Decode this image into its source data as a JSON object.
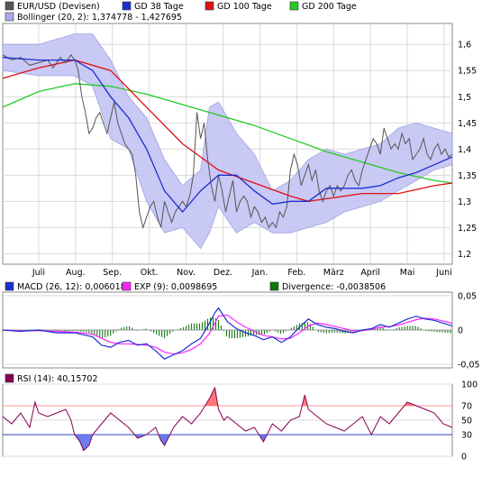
{
  "chart_data": [
    {
      "type": "line",
      "panel": "price",
      "legend": [
        {
          "name": "EUR/USD (Devisen)",
          "color": "#555555"
        },
        {
          "name": "GD 38 Tage",
          "color": "#1a2fd0"
        },
        {
          "name": "GD 100 Tage",
          "color": "#e01010"
        },
        {
          "name": "GD 200 Tage",
          "color": "#22cc22"
        },
        {
          "name": "Bollinger (20, 2): 1,374778 - 1,427695",
          "color": "#aaaaee"
        }
      ],
      "x_labels": [
        "Juli",
        "Aug.",
        "Sep.",
        "Okt.",
        "Nov.",
        "Dez.",
        "Jan.",
        "Feb.",
        "März",
        "April",
        "Mai",
        "Juni"
      ],
      "y_ticks": [
        "1,2",
        "1,25",
        "1,3",
        "1,35",
        "1,4",
        "1,45",
        "1,5",
        "1,55",
        "1,6"
      ],
      "ylim": [
        1.18,
        1.64
      ],
      "series": [
        {
          "name": "EUR/USD (Devisen)",
          "x": [
            0,
            5,
            10,
            15,
            20,
            25,
            28,
            32,
            35,
            38,
            40,
            42,
            44,
            46,
            48,
            50,
            52,
            54,
            56,
            58,
            60,
            62,
            64,
            66,
            68,
            70,
            72,
            74,
            76,
            78,
            80,
            82,
            84,
            86,
            88,
            90,
            92,
            94,
            96,
            98,
            100,
            102,
            104,
            106,
            108,
            110,
            112,
            114,
            116,
            118,
            120,
            122,
            124,
            126,
            128,
            130,
            132,
            134,
            136,
            138,
            140,
            142,
            144,
            146,
            148,
            150,
            152,
            154,
            156,
            158,
            160,
            162,
            164,
            166,
            168,
            170,
            172,
            174,
            176,
            178,
            180,
            182,
            184,
            186,
            188,
            190,
            192,
            194,
            196,
            198,
            200,
            202,
            204,
            206,
            208,
            210,
            212,
            214,
            216,
            218,
            220,
            222,
            224,
            226,
            228,
            230,
            232,
            234,
            236,
            238,
            240,
            242,
            244,
            246,
            248,
            250
          ],
          "y": [
            1.58,
            1.57,
            1.575,
            1.56,
            1.565,
            1.57,
            1.555,
            1.575,
            1.565,
            1.58,
            1.57,
            1.55,
            1.5,
            1.47,
            1.43,
            1.44,
            1.46,
            1.47,
            1.45,
            1.43,
            1.46,
            1.49,
            1.45,
            1.43,
            1.41,
            1.4,
            1.39,
            1.35,
            1.28,
            1.25,
            1.27,
            1.29,
            1.3,
            1.27,
            1.25,
            1.3,
            1.28,
            1.26,
            1.28,
            1.29,
            1.3,
            1.29,
            1.31,
            1.35,
            1.47,
            1.42,
            1.45,
            1.38,
            1.33,
            1.3,
            1.35,
            1.32,
            1.28,
            1.31,
            1.34,
            1.28,
            1.3,
            1.31,
            1.3,
            1.27,
            1.29,
            1.28,
            1.26,
            1.27,
            1.25,
            1.26,
            1.25,
            1.28,
            1.27,
            1.29,
            1.36,
            1.39,
            1.37,
            1.33,
            1.35,
            1.37,
            1.34,
            1.36,
            1.32,
            1.3,
            1.32,
            1.33,
            1.31,
            1.33,
            1.32,
            1.33,
            1.35,
            1.36,
            1.34,
            1.33,
            1.36,
            1.38,
            1.4,
            1.42,
            1.41,
            1.39,
            1.44,
            1.42,
            1.4,
            1.41,
            1.4,
            1.43,
            1.41,
            1.42,
            1.38,
            1.39,
            1.4,
            1.42,
            1.39,
            1.38,
            1.4,
            1.41,
            1.39,
            1.4,
            1.385,
            1.39
          ]
        },
        {
          "name": "GD 38 Tage",
          "x": [
            0,
            20,
            40,
            50,
            60,
            70,
            80,
            90,
            100,
            110,
            120,
            130,
            140,
            150,
            160,
            170,
            180,
            190,
            200,
            210,
            220,
            230,
            240,
            250
          ],
          "y": [
            1.575,
            1.57,
            1.57,
            1.55,
            1.5,
            1.46,
            1.4,
            1.32,
            1.28,
            1.32,
            1.35,
            1.35,
            1.32,
            1.295,
            1.3,
            1.3,
            1.325,
            1.325,
            1.325,
            1.33,
            1.345,
            1.355,
            1.37,
            1.385
          ]
        },
        {
          "name": "GD 100 Tage",
          "x": [
            0,
            20,
            40,
            60,
            80,
            100,
            120,
            140,
            160,
            170,
            180,
            200,
            220,
            240,
            250
          ],
          "y": [
            1.535,
            1.555,
            1.57,
            1.55,
            1.48,
            1.41,
            1.36,
            1.335,
            1.31,
            1.3,
            1.305,
            1.315,
            1.315,
            1.33,
            1.335
          ]
        },
        {
          "name": "GD 200 Tage",
          "x": [
            0,
            20,
            40,
            60,
            80,
            100,
            120,
            140,
            160,
            180,
            200,
            220,
            240,
            250
          ],
          "y": [
            1.48,
            1.51,
            1.525,
            1.52,
            1.505,
            1.485,
            1.465,
            1.445,
            1.42,
            1.395,
            1.375,
            1.355,
            1.34,
            1.335
          ]
        },
        {
          "name": "Bollinger upper",
          "x": [
            0,
            20,
            40,
            50,
            60,
            70,
            80,
            90,
            100,
            110,
            115,
            120,
            130,
            140,
            150,
            160,
            170,
            180,
            190,
            200,
            210,
            220,
            230,
            240,
            250
          ],
          "y": [
            1.6,
            1.6,
            1.62,
            1.62,
            1.57,
            1.5,
            1.46,
            1.38,
            1.33,
            1.36,
            1.48,
            1.49,
            1.43,
            1.39,
            1.32,
            1.34,
            1.38,
            1.4,
            1.39,
            1.4,
            1.41,
            1.44,
            1.45,
            1.44,
            1.43
          ]
        },
        {
          "name": "Bollinger lower",
          "x": [
            0,
            20,
            40,
            50,
            60,
            70,
            80,
            90,
            100,
            110,
            115,
            120,
            130,
            140,
            150,
            160,
            170,
            180,
            190,
            200,
            210,
            220,
            230,
            240,
            250
          ],
          "y": [
            1.55,
            1.54,
            1.54,
            1.52,
            1.42,
            1.4,
            1.3,
            1.24,
            1.25,
            1.21,
            1.24,
            1.29,
            1.24,
            1.26,
            1.24,
            1.24,
            1.25,
            1.26,
            1.28,
            1.29,
            1.3,
            1.32,
            1.34,
            1.36,
            1.37
          ]
        }
      ]
    },
    {
      "type": "line",
      "panel": "macd",
      "legend": [
        {
          "name": "MACD (26, 12): 0,0060189",
          "color": "#1a2fd0"
        },
        {
          "name": "EXP (9): 0,0098695",
          "color": "#ff22ff"
        },
        {
          "name": "Divergence: -0,0038506",
          "color": "#117711"
        }
      ],
      "y_ticks": [
        "0,05",
        "0",
        "-0,05"
      ],
      "ylim": [
        -0.055,
        0.055
      ],
      "series": [
        {
          "name": "MACD",
          "x": [
            0,
            10,
            20,
            30,
            40,
            50,
            55,
            60,
            65,
            70,
            75,
            80,
            85,
            90,
            95,
            100,
            105,
            110,
            115,
            118,
            120,
            125,
            130,
            135,
            140,
            145,
            150,
            155,
            160,
            165,
            170,
            175,
            180,
            185,
            190,
            195,
            200,
            205,
            210,
            215,
            220,
            225,
            230,
            235,
            240,
            245,
            250
          ],
          "y": [
            0.0,
            -0.002,
            0.0,
            -0.004,
            -0.004,
            -0.01,
            -0.022,
            -0.025,
            -0.018,
            -0.015,
            -0.022,
            -0.02,
            -0.03,
            -0.042,
            -0.036,
            -0.03,
            -0.02,
            -0.012,
            0.01,
            0.025,
            0.032,
            0.012,
            0.002,
            -0.004,
            -0.008,
            -0.014,
            -0.01,
            -0.018,
            -0.01,
            0.004,
            0.016,
            0.008,
            0.004,
            0.002,
            -0.002,
            -0.004,
            0.0,
            0.002,
            0.008,
            0.004,
            0.01,
            0.016,
            0.02,
            0.016,
            0.014,
            0.01,
            0.006
          ]
        },
        {
          "name": "EXP",
          "x": [
            0,
            10,
            20,
            30,
            40,
            50,
            55,
            60,
            65,
            70,
            75,
            80,
            85,
            90,
            95,
            100,
            105,
            110,
            115,
            118,
            120,
            125,
            130,
            135,
            140,
            145,
            150,
            155,
            160,
            165,
            170,
            175,
            180,
            185,
            190,
            195,
            200,
            205,
            210,
            215,
            220,
            225,
            230,
            235,
            240,
            245,
            250
          ],
          "y": [
            0.0,
            -0.001,
            -0.001,
            -0.002,
            -0.003,
            -0.006,
            -0.012,
            -0.018,
            -0.02,
            -0.02,
            -0.021,
            -0.022,
            -0.025,
            -0.032,
            -0.035,
            -0.033,
            -0.028,
            -0.02,
            -0.005,
            0.01,
            0.02,
            0.022,
            0.012,
            0.004,
            -0.002,
            -0.008,
            -0.01,
            -0.013,
            -0.012,
            -0.004,
            0.006,
            0.01,
            0.008,
            0.005,
            0.002,
            -0.001,
            -0.001,
            0.001,
            0.004,
            0.005,
            0.007,
            0.011,
            0.015,
            0.017,
            0.016,
            0.013,
            0.01
          ]
        }
      ]
    },
    {
      "type": "line",
      "panel": "rsi",
      "legend": [
        {
          "name": "RSI (14): 40,15702",
          "color": "#880055"
        }
      ],
      "y_ticks": [
        "100",
        "70",
        "50",
        "30",
        "0"
      ],
      "ylim": [
        0,
        100
      ],
      "thresholds": [
        {
          "value": 70,
          "color": "#ff9999"
        },
        {
          "value": 30,
          "color": "#3344bb"
        }
      ],
      "series": [
        {
          "name": "RSI",
          "x": [
            0,
            5,
            10,
            15,
            18,
            20,
            25,
            30,
            35,
            38,
            40,
            43,
            45,
            48,
            50,
            55,
            60,
            65,
            70,
            75,
            80,
            85,
            88,
            90,
            95,
            100,
            105,
            110,
            115,
            118,
            120,
            123,
            125,
            130,
            135,
            140,
            145,
            150,
            155,
            160,
            165,
            168,
            170,
            175,
            180,
            185,
            190,
            195,
            200,
            205,
            210,
            215,
            220,
            225,
            230,
            235,
            240,
            245,
            250
          ],
          "y": [
            55,
            45,
            60,
            40,
            75,
            60,
            55,
            60,
            65,
            50,
            30,
            20,
            8,
            15,
            30,
            45,
            60,
            50,
            40,
            25,
            30,
            40,
            22,
            15,
            40,
            55,
            45,
            60,
            80,
            95,
            65,
            50,
            55,
            45,
            35,
            40,
            20,
            45,
            35,
            50,
            55,
            85,
            65,
            55,
            45,
            40,
            35,
            45,
            55,
            30,
            55,
            45,
            60,
            75,
            70,
            65,
            60,
            45,
            40
          ]
        }
      ]
    }
  ]
}
